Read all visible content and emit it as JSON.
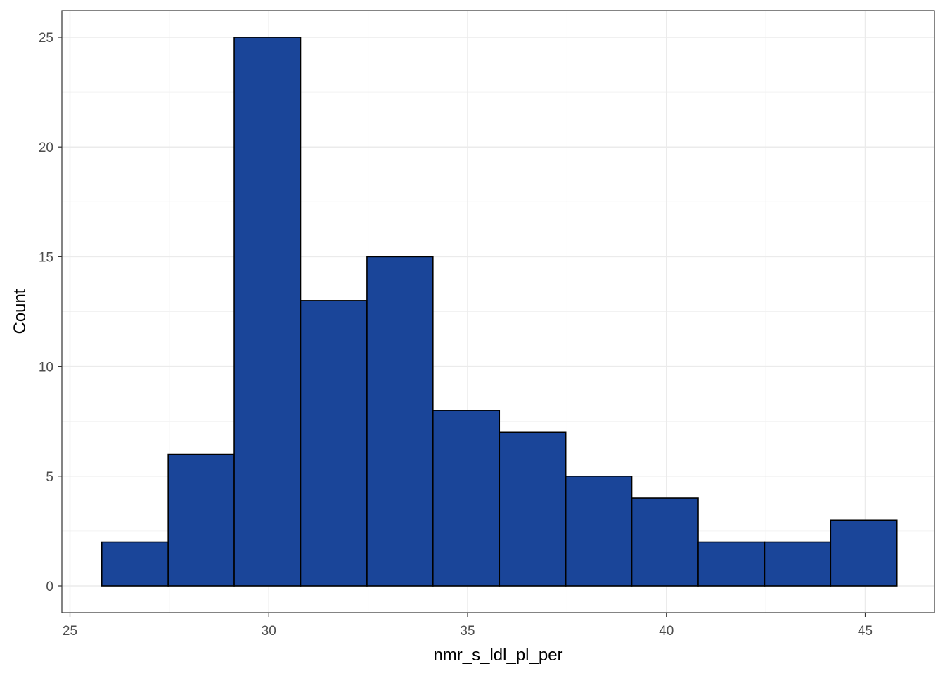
{
  "chart_data": {
    "type": "bar",
    "subtype": "histogram",
    "title": "",
    "xlabel": "nmr_s_ldl_pl_per",
    "ylabel": "Count",
    "xlim": [
      25,
      46
    ],
    "ylim": [
      0,
      25
    ],
    "x_ticks": [
      25,
      30,
      35,
      40,
      45
    ],
    "y_ticks": [
      0,
      5,
      10,
      15,
      20,
      25
    ],
    "bins": [
      {
        "x0": 25.8,
        "x1": 27.47,
        "count": 2
      },
      {
        "x0": 27.47,
        "x1": 29.13,
        "count": 6
      },
      {
        "x0": 29.13,
        "x1": 30.8,
        "count": 25
      },
      {
        "x0": 30.8,
        "x1": 32.47,
        "count": 13
      },
      {
        "x0": 32.47,
        "x1": 34.13,
        "count": 15
      },
      {
        "x0": 34.13,
        "x1": 35.8,
        "count": 8
      },
      {
        "x0": 35.8,
        "x1": 37.47,
        "count": 7
      },
      {
        "x0": 37.47,
        "x1": 39.13,
        "count": 5
      },
      {
        "x0": 39.13,
        "x1": 40.8,
        "count": 4
      },
      {
        "x0": 40.8,
        "x1": 42.47,
        "count": 2
      },
      {
        "x0": 42.47,
        "x1": 44.13,
        "count": 2
      },
      {
        "x0": 44.13,
        "x1": 45.8,
        "count": 3
      }
    ],
    "bar_color": "#1a4599",
    "bar_outline_color": "#000000",
    "grid": true,
    "legend": "none"
  }
}
